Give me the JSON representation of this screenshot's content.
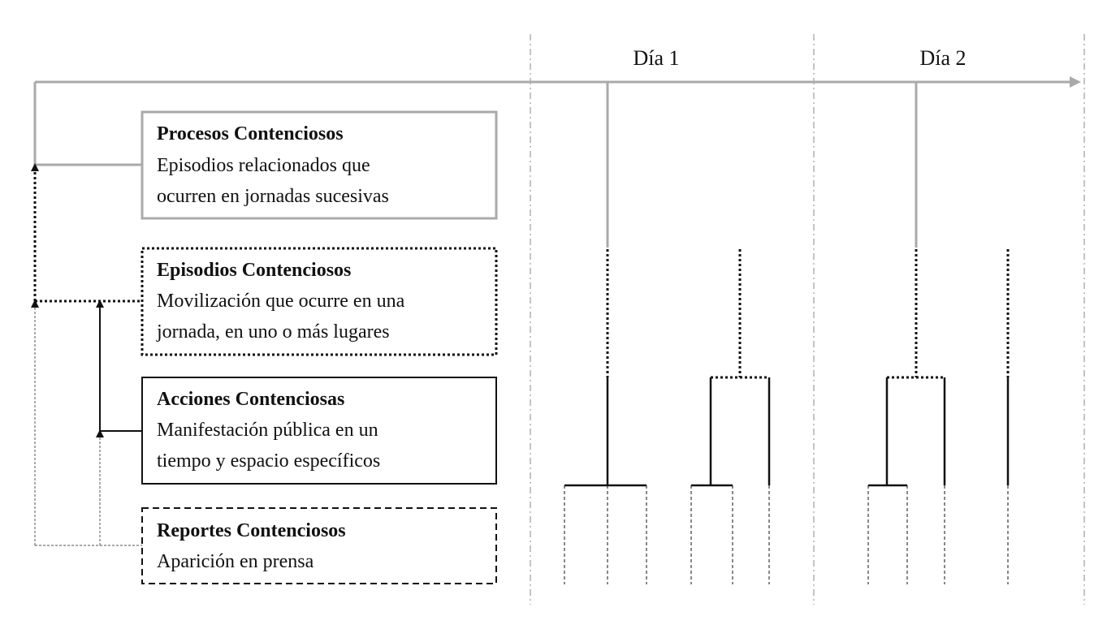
{
  "days": [
    "Día 1",
    "Día 2"
  ],
  "levels": [
    {
      "title": "Procesos Contenciosos",
      "lines": [
        "Episodios relacionados que",
        "ocurren en jornadas sucesivas"
      ],
      "border": "solid-gray"
    },
    {
      "title": "Episodios Contenciosos",
      "lines": [
        "Movilización que ocurre en una",
        "jornada, en uno o más lugares"
      ],
      "border": "dotted"
    },
    {
      "title": "Acciones Contenciosas",
      "lines": [
        "Manifestación pública en un",
        "tiempo y espacio específicos"
      ],
      "border": "solid-black"
    },
    {
      "title": "Reportes Contenciosos",
      "lines": [
        "Aparición en prensa"
      ],
      "border": "dashed"
    }
  ],
  "colors": {
    "gray": "#aaaaaa",
    "black": "#111111",
    "guide": "#888888"
  }
}
